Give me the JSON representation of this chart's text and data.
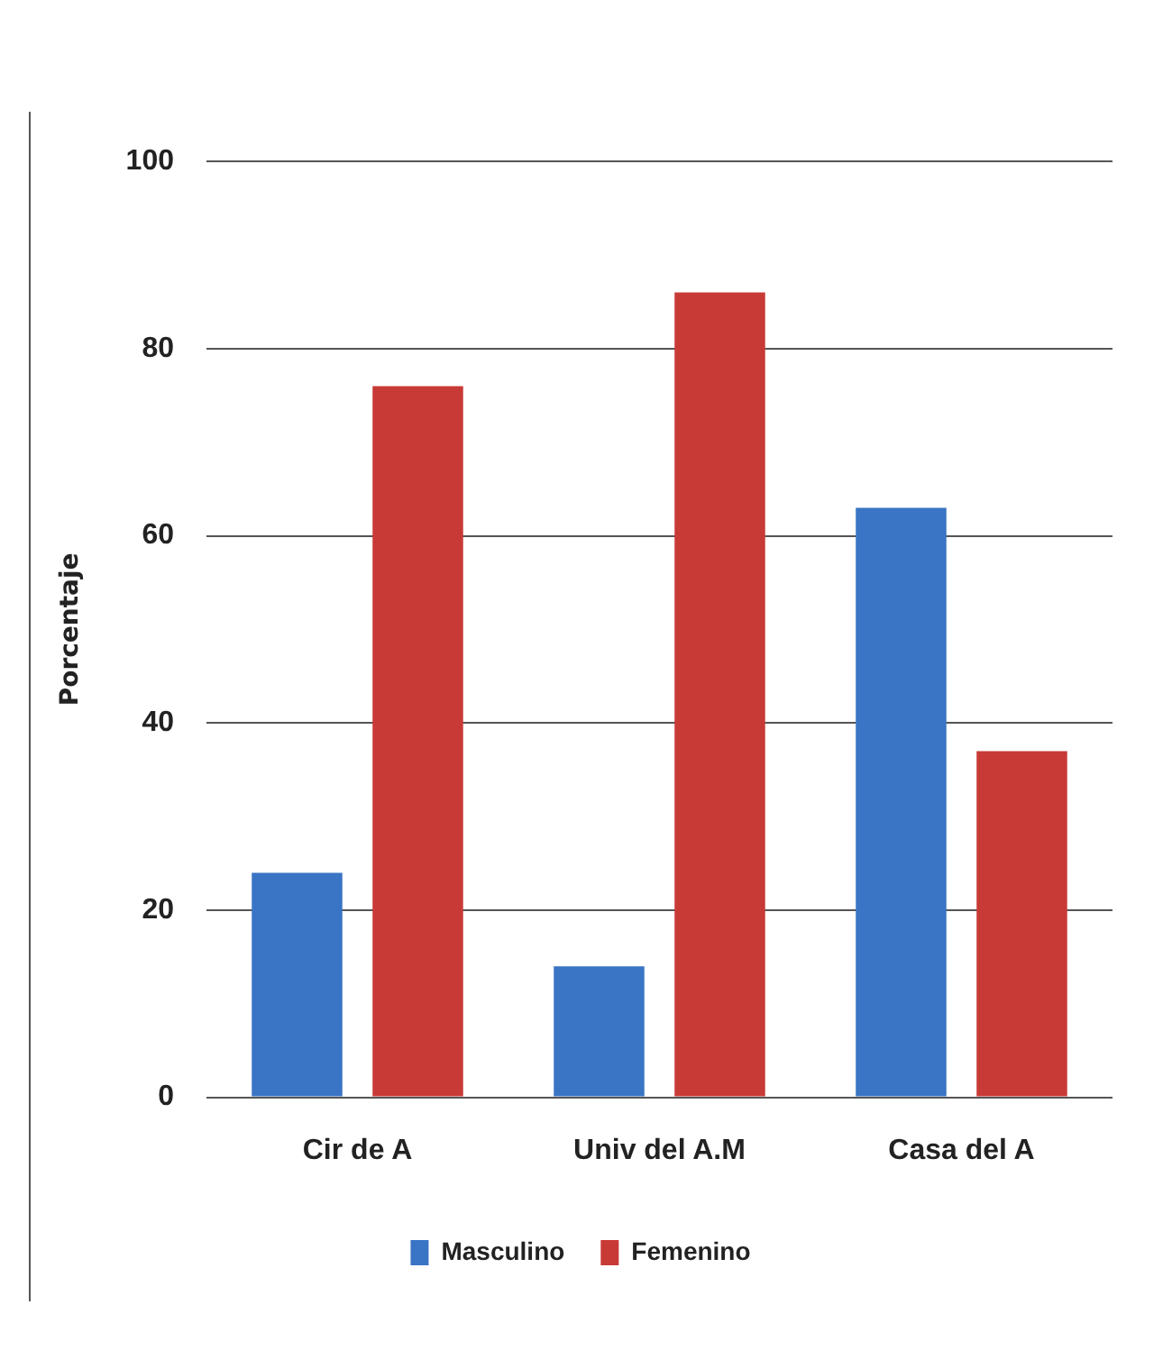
{
  "chart_data": {
    "type": "bar",
    "ylabel": "Porcentaje",
    "categories": [
      "Cir de A",
      "Univ del A.M",
      "Casa del A"
    ],
    "series": [
      {
        "name": "Masculino",
        "color": "#3a74c4",
        "values": [
          24,
          14,
          63
        ]
      },
      {
        "name": "Femenino",
        "color": "#c83a36",
        "values": [
          76,
          86,
          37
        ]
      }
    ],
    "ylim": [
      0,
      100
    ],
    "yticks": [
      0,
      20,
      40,
      60,
      80,
      100
    ],
    "grid": "y",
    "legend": "bottom"
  }
}
